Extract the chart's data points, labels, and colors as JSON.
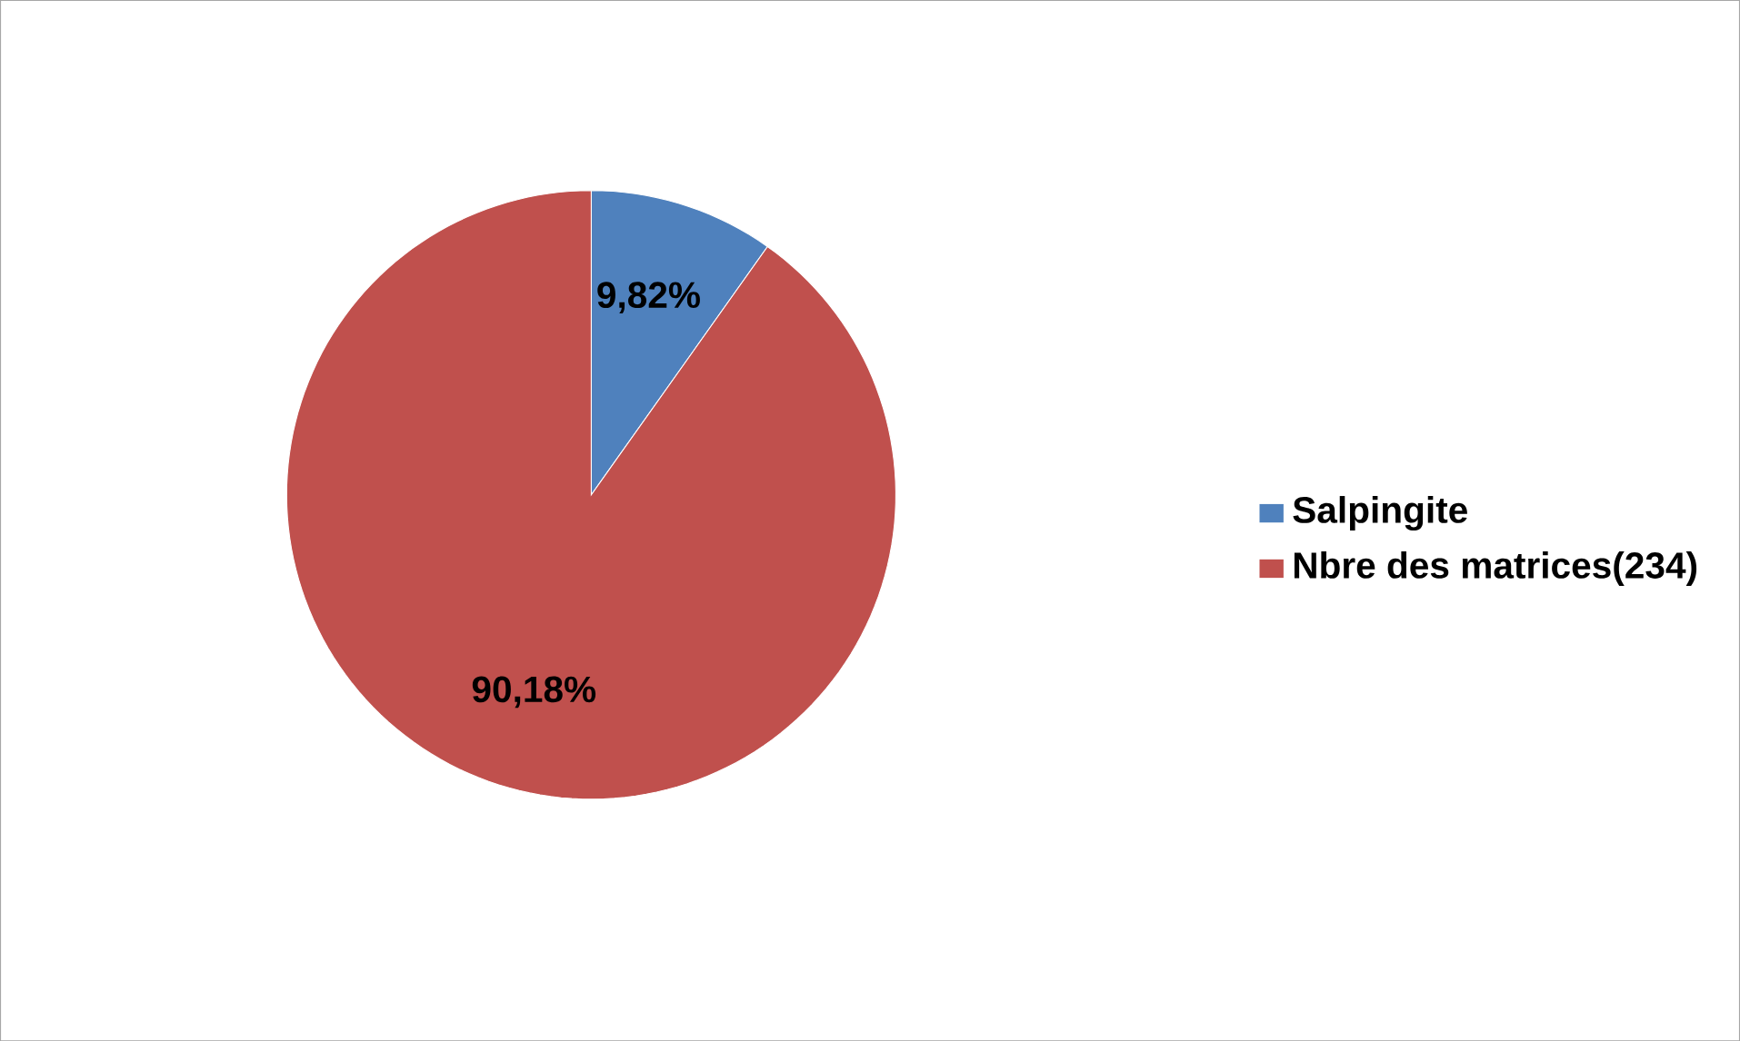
{
  "chart_data": {
    "type": "pie",
    "categories": [
      "Salpingite",
      "Nbre des matrices(234)"
    ],
    "values": [
      9.82,
      90.18
    ],
    "value_labels": [
      "9,82%",
      "90,18%"
    ],
    "colors": [
      "#4f81bd",
      "#c0504d"
    ],
    "legend": "right"
  }
}
